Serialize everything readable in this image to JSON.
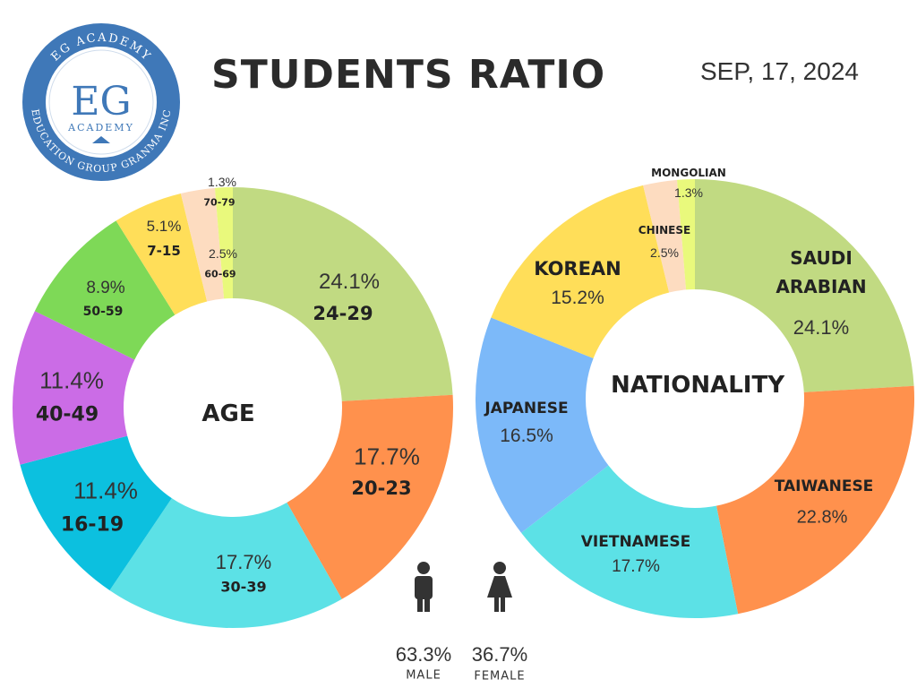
{
  "header": {
    "title": "STUDENTS RATIO",
    "date": "SEP, 17, 2024"
  },
  "logo": {
    "top_text": "EG ACADEMY",
    "main": "EG",
    "sub": "ACADEMY",
    "bottom_text": "EDUCATION GROUP GRANMA INC"
  },
  "chart_data": [
    {
      "type": "pie",
      "variant": "donut",
      "title": "AGE",
      "categories": [
        "24-29",
        "20-23",
        "30-39",
        "16-19",
        "40-49",
        "50-59",
        "7-15",
        "60-69",
        "70-79"
      ],
      "labels": [
        "24.1%",
        "17.7%",
        "17.7%",
        "11.4%",
        "11.4%",
        "8.9%",
        "5.1%",
        "2.5%",
        "1.3%"
      ],
      "values": [
        24.1,
        17.7,
        17.7,
        11.4,
        11.4,
        8.9,
        5.1,
        2.5,
        1.3
      ],
      "colors": [
        "#c1da82",
        "#ff914d",
        "#5ce1e6",
        "#0cc0df",
        "#cb6ce6",
        "#7ed957",
        "#ffde59",
        "#fddcc0",
        "#e9f97c"
      ]
    },
    {
      "type": "pie",
      "variant": "donut",
      "title": "NATIONALITY",
      "categories": [
        "SAUDI ARABIAN",
        "TAIWANESE",
        "VIETNAMESE",
        "JAPANESE",
        "KOREAN",
        "CHINESE",
        "MONGOLIAN"
      ],
      "labels": [
        "24.1%",
        "22.8%",
        "17.7%",
        "16.5%",
        "15.2%",
        "2.5%",
        "1.3%"
      ],
      "values": [
        24.1,
        22.8,
        17.7,
        16.5,
        15.2,
        2.5,
        1.3
      ],
      "colors": [
        "#c1da82",
        "#ff914d",
        "#5ce1e6",
        "#7cb9f9",
        "#ffde59",
        "#fddcc0",
        "#e9f97c"
      ]
    }
  ],
  "gender": {
    "male": {
      "value": "63.3%",
      "label": "MALE"
    },
    "female": {
      "value": "36.7%",
      "label": "FEMALE"
    }
  }
}
